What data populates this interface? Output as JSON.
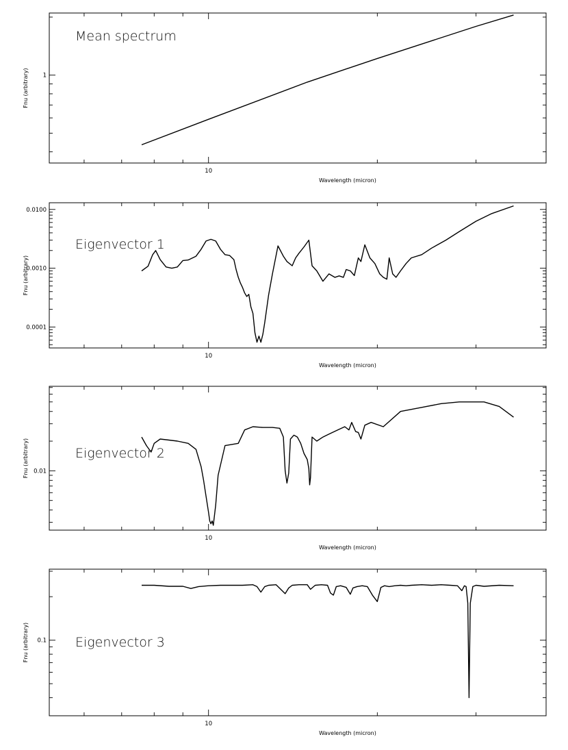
{
  "chart_data": [
    {
      "type": "line",
      "title": "Mean spectrum",
      "xlabel": "Wavelength (micron)",
      "ylabel": "Fnu (arbitrary)",
      "xscale": "log",
      "yscale": "log",
      "xlim": [
        5.2,
        40
      ],
      "ylim": [
        0.35,
        2.1
      ],
      "x_ticks": [
        {
          "value": 10,
          "label": "10"
        }
      ],
      "y_ticks": [
        {
          "value": 1,
          "label": "1"
        }
      ],
      "series": [
        {
          "x": [
            7.6,
            10.0,
            15.0,
            20.0,
            30.0,
            35.0
          ],
          "y": [
            0.435,
            0.59,
            0.92,
            1.22,
            1.79,
            2.05
          ]
        }
      ]
    },
    {
      "type": "line",
      "title": "Eigenvector 1",
      "xlabel": "Wavelength (micron)",
      "ylabel": "Fnu (arbitrary)",
      "xscale": "log",
      "yscale": "log",
      "xlim": [
        5.2,
        40
      ],
      "ylim": [
        4.4e-05,
        0.013
      ],
      "x_ticks": [
        {
          "value": 10,
          "label": "10"
        }
      ],
      "y_ticks": [
        {
          "value": 0.0001,
          "label": "0.0001"
        },
        {
          "value": 0.001,
          "label": "0.0010"
        },
        {
          "value": 0.01,
          "label": "0.0100"
        }
      ],
      "series": [
        {
          "x": [
            7.6,
            7.8,
            7.95,
            8.05,
            8.2,
            8.4,
            8.6,
            8.8,
            9.0,
            9.2,
            9.5,
            9.7,
            9.9,
            10.1,
            10.3,
            10.5,
            10.7,
            10.9,
            11.1,
            11.2,
            11.3,
            11.4,
            11.5,
            11.6,
            11.7,
            11.8,
            11.9,
            12.0,
            12.1,
            12.2,
            12.3,
            12.4,
            12.5,
            12.6,
            12.8,
            13.0,
            13.3,
            13.6,
            13.8,
            14.1,
            14.3,
            14.5,
            14.8,
            15.1,
            15.3,
            15.6,
            16.0,
            16.4,
            16.8,
            17.1,
            17.4,
            17.6,
            17.9,
            18.2,
            18.5,
            18.7,
            19.0,
            19.4,
            19.8,
            20.2,
            20.5,
            20.8,
            21.0,
            21.3,
            21.6,
            22.0,
            22.5,
            23.0,
            24.0,
            25.0,
            26.5,
            28.0,
            30.0,
            32.0,
            35.0
          ],
          "y": [
            0.0009,
            0.00108,
            0.0017,
            0.002,
            0.0014,
            0.00105,
            0.001,
            0.00105,
            0.00135,
            0.00138,
            0.0016,
            0.0021,
            0.0029,
            0.0031,
            0.0029,
            0.0021,
            0.0017,
            0.00165,
            0.0014,
            0.00095,
            0.0007,
            0.00056,
            0.00047,
            0.00038,
            0.00033,
            0.00036,
            0.00022,
            0.00017,
            8e-05,
            5.5e-05,
            7e-05,
            5.5e-05,
            7.5e-05,
            0.00012,
            0.00035,
            0.0008,
            0.0024,
            0.0016,
            0.0013,
            0.0011,
            0.0015,
            0.0018,
            0.0023,
            0.003,
            0.0011,
            0.0009,
            0.0006,
            0.0008,
            0.0007,
            0.00074,
            0.0007,
            0.00095,
            0.0009,
            0.00075,
            0.0015,
            0.0013,
            0.0025,
            0.0015,
            0.0012,
            0.0008,
            0.0007,
            0.00065,
            0.0015,
            0.0008,
            0.0007,
            0.0009,
            0.0012,
            0.0015,
            0.0017,
            0.0022,
            0.003,
            0.0042,
            0.0063,
            0.0085,
            0.0115
          ]
        }
      ]
    },
    {
      "type": "line",
      "title": "Eigenvector 2",
      "xlabel": "Wavelength (micron)",
      "ylabel": "Fnu (arbitrary)",
      "xscale": "log",
      "yscale": "log",
      "xlim": [
        5.2,
        40
      ],
      "ylim": [
        0.0025,
        0.072
      ],
      "x_ticks": [
        {
          "value": 10,
          "label": "10"
        }
      ],
      "y_ticks": [
        {
          "value": 0.01,
          "label": "0.01"
        }
      ],
      "series": [
        {
          "x": [
            7.6,
            7.75,
            7.9,
            8.0,
            8.2,
            8.5,
            8.8,
            9.2,
            9.5,
            9.7,
            9.8,
            9.9,
            10.0,
            10.05,
            10.1,
            10.15,
            10.2,
            10.3,
            10.4,
            10.7,
            11.0,
            11.3,
            11.6,
            12.0,
            12.5,
            13.0,
            13.4,
            13.6,
            13.7,
            13.8,
            13.9,
            14.0,
            14.2,
            14.4,
            14.6,
            14.8,
            15.0,
            15.1,
            15.15,
            15.2,
            15.3,
            15.6,
            16.0,
            16.5,
            17.0,
            17.5,
            17.8,
            18.0,
            18.3,
            18.5,
            18.7,
            19.0,
            19.5,
            20.5,
            22.0,
            24.0,
            26.0,
            28.0,
            29.5,
            31.0,
            33.0,
            35.0
          ],
          "y": [
            0.022,
            0.018,
            0.0155,
            0.019,
            0.021,
            0.0205,
            0.02,
            0.019,
            0.0165,
            0.011,
            0.008,
            0.0055,
            0.0038,
            0.0031,
            0.0029,
            0.0031,
            0.0028,
            0.0045,
            0.009,
            0.018,
            0.0185,
            0.019,
            0.026,
            0.028,
            0.0275,
            0.0275,
            0.027,
            0.022,
            0.01,
            0.0075,
            0.0095,
            0.021,
            0.023,
            0.022,
            0.019,
            0.015,
            0.013,
            0.0105,
            0.0072,
            0.0085,
            0.022,
            0.02,
            0.022,
            0.024,
            0.026,
            0.028,
            0.026,
            0.031,
            0.025,
            0.0245,
            0.021,
            0.029,
            0.031,
            0.028,
            0.04,
            0.044,
            0.048,
            0.05,
            0.05,
            0.05,
            0.045,
            0.035
          ]
        }
      ]
    },
    {
      "type": "line",
      "title": "Eigenvector 3",
      "xlabel": "Wavelength (micron)",
      "ylabel": "Fnu (arbitrary)",
      "xscale": "log",
      "yscale": "log",
      "xlim": [
        5.2,
        40
      ],
      "ylim": [
        0.03,
        0.31
      ],
      "x_ticks": [
        {
          "value": 10,
          "label": "10"
        }
      ],
      "y_ticks": [
        {
          "value": 0.1,
          "label": "0.1"
        }
      ],
      "series": [
        {
          "x": [
            7.6,
            8.0,
            8.5,
            9.0,
            9.3,
            9.6,
            10.0,
            10.5,
            11.0,
            11.5,
            12.0,
            12.2,
            12.4,
            12.6,
            12.8,
            13.2,
            13.5,
            13.7,
            13.9,
            14.1,
            14.5,
            15.0,
            15.2,
            15.5,
            15.9,
            16.3,
            16.5,
            16.7,
            16.9,
            17.2,
            17.6,
            17.9,
            18.1,
            18.4,
            18.8,
            19.2,
            19.6,
            20.0,
            20.3,
            20.6,
            21.0,
            21.5,
            22.0,
            22.5,
            23.0,
            24.0,
            25.0,
            26.0,
            27.0,
            27.8,
            28.3,
            28.6,
            28.8,
            29.0,
            29.15,
            29.3,
            29.6,
            30.0,
            31.0,
            33.0,
            35.0
          ],
          "y": [
            0.24,
            0.24,
            0.236,
            0.236,
            0.228,
            0.235,
            0.238,
            0.24,
            0.24,
            0.24,
            0.242,
            0.235,
            0.215,
            0.235,
            0.24,
            0.242,
            0.222,
            0.21,
            0.23,
            0.24,
            0.242,
            0.242,
            0.225,
            0.24,
            0.242,
            0.24,
            0.212,
            0.205,
            0.235,
            0.238,
            0.232,
            0.208,
            0.23,
            0.235,
            0.238,
            0.235,
            0.205,
            0.185,
            0.232,
            0.238,
            0.235,
            0.238,
            0.24,
            0.238,
            0.24,
            0.242,
            0.24,
            0.242,
            0.24,
            0.238,
            0.22,
            0.238,
            0.235,
            0.18,
            0.04,
            0.18,
            0.235,
            0.24,
            0.236,
            0.24,
            0.238
          ]
        }
      ]
    }
  ]
}
